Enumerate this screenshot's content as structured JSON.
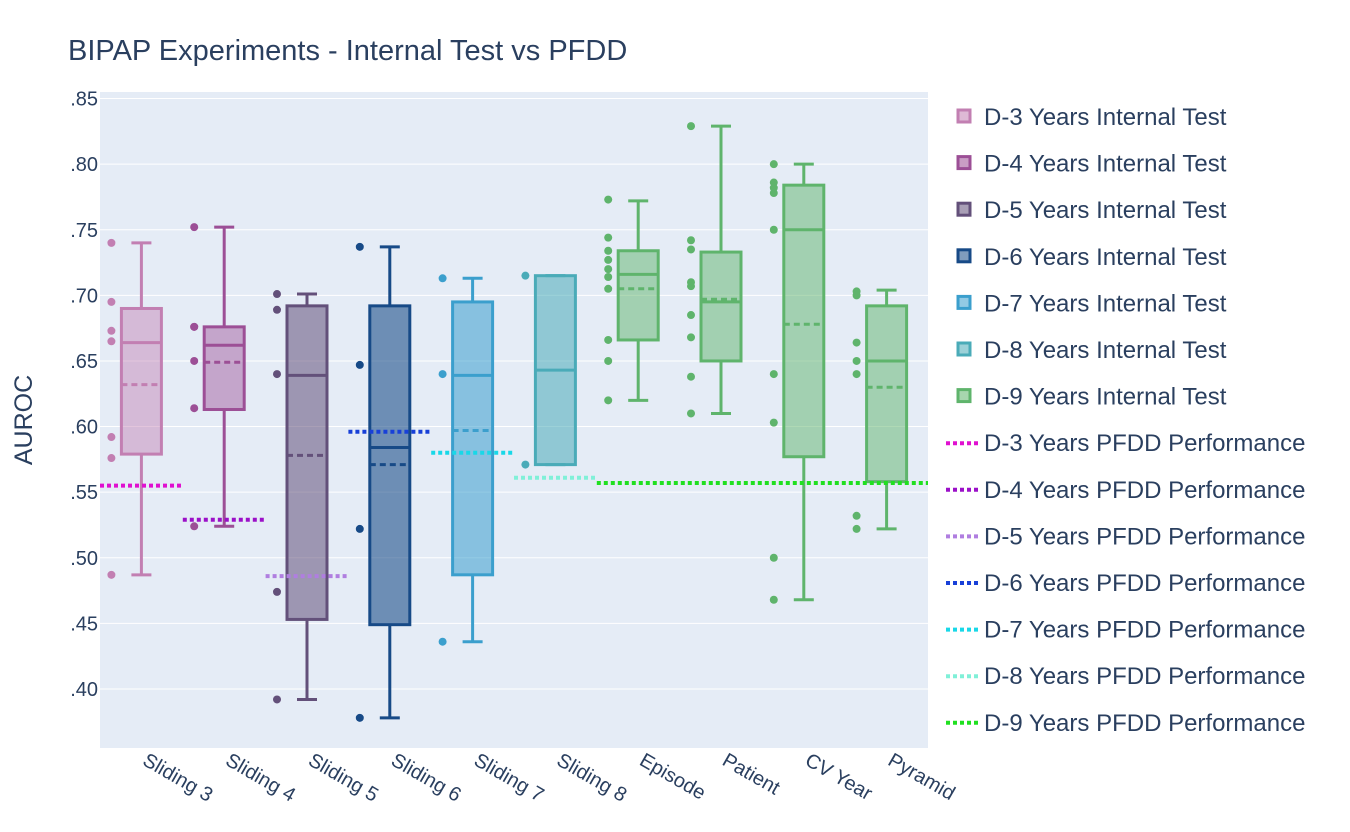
{
  "chart_data": {
    "type": "box",
    "title": "BIPAP Experiments - Internal Test vs PFDD",
    "xlabel": "",
    "ylabel": "AUROC",
    "ylim": [
      0.355,
      0.855
    ],
    "yticks": [
      ".40",
      ".45",
      ".50",
      ".55",
      ".60",
      ".65",
      ".70",
      ".75",
      ".80",
      ".85"
    ],
    "ytick_values": [
      0.4,
      0.45,
      0.5,
      0.55,
      0.6,
      0.65,
      0.7,
      0.75,
      0.8,
      0.85
    ],
    "grid": true,
    "legend_position": "right",
    "categories": [
      "Sliding 3",
      "Sliding 4",
      "Sliding 5",
      "Sliding 6",
      "Sliding 7",
      "Sliding 8",
      "Episode",
      "Patient",
      "CV Year",
      "Pyramid"
    ],
    "boxes": [
      {
        "category": "Sliding 3",
        "series": "D-3 Years Internal Test",
        "color": "#c27fb2",
        "fill": "rgba(194,127,178,0.45)",
        "min": 0.487,
        "q1": 0.579,
        "median": 0.664,
        "mean": 0.632,
        "q3": 0.69,
        "max": 0.74,
        "points": [
          0.74,
          0.695,
          0.673,
          0.665,
          0.592,
          0.576,
          0.487
        ]
      },
      {
        "category": "Sliding 4",
        "series": "D-4 Years Internal Test",
        "color": "#9c4f96",
        "fill": "rgba(156,79,150,0.45)",
        "min": 0.524,
        "q1": 0.613,
        "median": 0.662,
        "mean": 0.649,
        "q3": 0.676,
        "max": 0.752,
        "points": [
          0.752,
          0.676,
          0.676,
          0.65,
          0.614,
          0.524
        ]
      },
      {
        "category": "Sliding 5",
        "series": "D-5 Years Internal Test",
        "color": "#63507a",
        "fill": "rgba(99,80,122,0.55)",
        "min": 0.392,
        "q1": 0.453,
        "median": 0.639,
        "mean": 0.578,
        "q3": 0.692,
        "max": 0.701,
        "points": [
          0.701,
          0.689,
          0.64,
          0.474,
          0.392
        ]
      },
      {
        "category": "Sliding 6",
        "series": "D-6 Years Internal Test",
        "color": "#174a87",
        "fill": "rgba(23,74,135,0.58)",
        "min": 0.378,
        "q1": 0.449,
        "median": 0.584,
        "mean": 0.571,
        "q3": 0.692,
        "max": 0.737,
        "points": [
          0.737,
          0.647,
          0.522,
          0.378
        ]
      },
      {
        "category": "Sliding 7",
        "series": "D-7 Years Internal Test",
        "color": "#3b9fcd",
        "fill": "rgba(59,159,205,0.55)",
        "min": 0.436,
        "q1": 0.487,
        "median": 0.639,
        "mean": 0.597,
        "q3": 0.695,
        "max": 0.713,
        "points": [
          0.713,
          0.64,
          0.436
        ]
      },
      {
        "category": "Sliding 8",
        "series": "D-8 Years Internal Test",
        "color": "#4aabb8",
        "fill": "rgba(74,171,184,0.55)",
        "min": 0.571,
        "q1": 0.571,
        "median": 0.643,
        "mean": null,
        "q3": 0.715,
        "max": 0.715,
        "points": [
          0.715,
          0.571
        ]
      },
      {
        "category": "Episode",
        "series": "D-9 Years Internal Test",
        "color": "#5fb46c",
        "fill": "rgba(95,180,108,0.5)",
        "min": 0.62,
        "q1": 0.666,
        "median": 0.716,
        "mean": 0.705,
        "q3": 0.734,
        "max": 0.772,
        "points": [
          0.773,
          0.744,
          0.734,
          0.727,
          0.72,
          0.714,
          0.705,
          0.666,
          0.65,
          0.62
        ]
      },
      {
        "category": "Patient",
        "series": "D-9 Years Internal Test",
        "color": "#5fb46c",
        "fill": "rgba(95,180,108,0.5)",
        "min": 0.61,
        "q1": 0.65,
        "median": 0.695,
        "mean": 0.697,
        "q3": 0.733,
        "max": 0.829,
        "points": [
          0.829,
          0.742,
          0.735,
          0.71,
          0.707,
          0.685,
          0.668,
          0.638,
          0.61
        ]
      },
      {
        "category": "CV Year",
        "series": "D-9 Years Internal Test",
        "color": "#5fb46c",
        "fill": "rgba(95,180,108,0.5)",
        "min": 0.468,
        "q1": 0.577,
        "median": 0.75,
        "mean": 0.678,
        "q3": 0.784,
        "max": 0.8,
        "points": [
          0.8,
          0.786,
          0.782,
          0.778,
          0.75,
          0.64,
          0.603,
          0.5,
          0.468
        ]
      },
      {
        "category": "Pyramid",
        "series": "D-9 Years Internal Test",
        "color": "#5fb46c",
        "fill": "rgba(95,180,108,0.5)",
        "min": 0.522,
        "q1": 0.558,
        "median": 0.65,
        "mean": 0.63,
        "q3": 0.692,
        "max": 0.704,
        "points": [
          0.703,
          0.7,
          0.664,
          0.65,
          0.64,
          0.532,
          0.522
        ]
      }
    ],
    "pfdd_lines": [
      {
        "series": "D-3 Years PFDD Performance",
        "value": 0.555,
        "color": "#e010d0",
        "from": -0.5,
        "to": 0.5
      },
      {
        "series": "D-4 Years PFDD Performance",
        "value": 0.529,
        "color": "#9b10c8",
        "from": 0.5,
        "to": 1.5
      },
      {
        "series": "D-5 Years PFDD Performance",
        "value": 0.486,
        "color": "#b07ee0",
        "from": 1.5,
        "to": 2.5
      },
      {
        "series": "D-6 Years PFDD Performance",
        "value": 0.596,
        "color": "#1840d8",
        "from": 2.5,
        "to": 3.5
      },
      {
        "series": "D-7 Years PFDD Performance",
        "value": 0.58,
        "color": "#18d8e8",
        "from": 3.5,
        "to": 4.5
      },
      {
        "series": "D-8 Years PFDD Performance",
        "value": 0.561,
        "color": "#80f0d8",
        "from": 4.5,
        "to": 5.5
      },
      {
        "series": "D-9 Years PFDD Performance",
        "value": 0.557,
        "color": "#20e020",
        "from": 5.5,
        "to": 9.5
      }
    ],
    "legend": [
      {
        "label": "D-3 Years Internal Test",
        "kind": "box",
        "color": "#c27fb2"
      },
      {
        "label": "D-4 Years Internal Test",
        "kind": "box",
        "color": "#9c4f96"
      },
      {
        "label": "D-5 Years Internal Test",
        "kind": "box",
        "color": "#63507a"
      },
      {
        "label": "D-6 Years Internal Test",
        "kind": "box",
        "color": "#174a87"
      },
      {
        "label": "D-7 Years Internal Test",
        "kind": "box",
        "color": "#3b9fcd"
      },
      {
        "label": "D-8 Years Internal Test",
        "kind": "box",
        "color": "#4aabb8"
      },
      {
        "label": "D-9 Years Internal Test",
        "kind": "box",
        "color": "#5fb46c"
      },
      {
        "label": "D-3 Years PFDD Performance",
        "kind": "line",
        "color": "#e010d0"
      },
      {
        "label": "D-4 Years PFDD Performance",
        "kind": "line",
        "color": "#9b10c8"
      },
      {
        "label": "D-5 Years PFDD Performance",
        "kind": "line",
        "color": "#b07ee0"
      },
      {
        "label": "D-6 Years PFDD Performance",
        "kind": "line",
        "color": "#1840d8"
      },
      {
        "label": "D-7 Years PFDD Performance",
        "kind": "line",
        "color": "#18d8e8"
      },
      {
        "label": "D-8 Years PFDD Performance",
        "kind": "line",
        "color": "#80f0d8"
      },
      {
        "label": "D-9 Years PFDD Performance",
        "kind": "line",
        "color": "#20e020"
      }
    ]
  }
}
